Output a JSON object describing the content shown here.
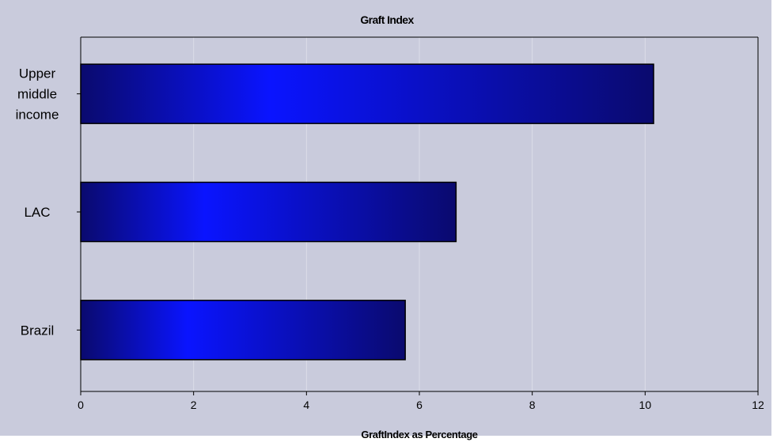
{
  "chart_data": {
    "type": "bar",
    "orientation": "horizontal",
    "title": "Graft Index",
    "xlabel": "GraftIndex as Percentage",
    "ylabel": "",
    "categories": [
      [
        "Upper",
        "middle",
        "income"
      ],
      [
        "LAC"
      ],
      [
        "Brazil"
      ]
    ],
    "values": [
      10.15,
      6.65,
      5.75
    ],
    "xlim": [
      0,
      12
    ],
    "xticks": [
      "0",
      "2",
      "4",
      "6",
      "8",
      "10",
      "12"
    ],
    "grid": {
      "vertical": true,
      "horizontal": false
    },
    "legend": "none"
  },
  "colors": {
    "background": "#c9cbdc",
    "gridline": "#dcdde8",
    "bar_edge": "#0a0a6e",
    "bar_center": "#0a14ff",
    "bar_outline": "#000000",
    "axis": "#000000"
  }
}
